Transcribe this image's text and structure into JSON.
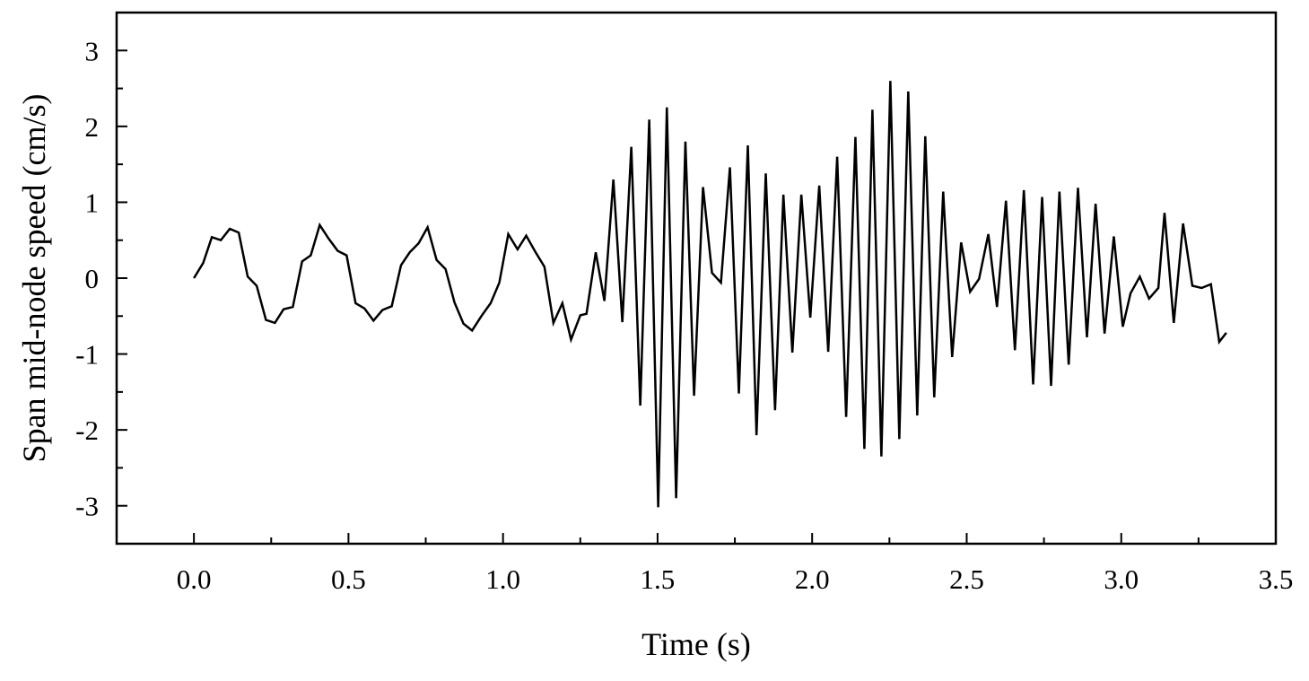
{
  "chart_data": {
    "type": "line",
    "xlabel": "Time (s)",
    "ylabel": "Span mid-node speed (cm/s)",
    "xlim": [
      -0.25,
      3.5
    ],
    "ylim": [
      -3.5,
      3.5
    ],
    "xticks": [
      {
        "value": 0,
        "label": "0.0"
      },
      0.5,
      {
        "value": 1,
        "label": "1.0"
      },
      1.5,
      {
        "value": 2,
        "label": "2.0"
      },
      2.5,
      {
        "value": 3,
        "label": "3.0"
      },
      3.5
    ],
    "yticks": [
      -3,
      -2,
      -1,
      0,
      1,
      2,
      3
    ],
    "xticks_minor": [
      -0.25,
      0.25,
      0.75,
      1.25,
      1.75,
      2.25,
      2.75,
      3.25
    ],
    "yticks_minor": [
      -3.5,
      -2.5,
      -1.5,
      -0.5,
      0.5,
      1.5,
      2.5,
      3.5
    ],
    "series": [
      {
        "color": "#000000",
        "x": [
          0,
          0.03,
          0.058,
          0.087,
          0.116,
          0.145,
          0.174,
          0.203,
          0.233,
          0.262,
          0.29,
          0.32,
          0.35,
          0.378,
          0.407,
          0.436,
          0.465,
          0.494,
          0.523,
          0.552,
          0.581,
          0.61,
          0.64,
          0.67,
          0.698,
          0.727,
          0.756,
          0.785,
          0.814,
          0.843,
          0.872,
          0.9,
          0.93,
          0.96,
          0.988,
          1.017,
          1.047,
          1.075,
          1.104,
          1.134,
          1.163,
          1.192,
          1.22,
          1.25,
          1.27,
          1.3,
          1.328,
          1.357,
          1.386,
          1.415,
          1.444,
          1.473,
          1.502,
          1.53,
          1.56,
          1.59,
          1.618,
          1.647,
          1.676,
          1.705,
          1.734,
          1.763,
          1.792,
          1.82,
          1.85,
          1.88,
          1.907,
          1.936,
          1.965,
          1.994,
          2.023,
          2.052,
          2.081,
          2.11,
          2.14,
          2.169,
          2.195,
          2.224,
          2.253,
          2.282,
          2.311,
          2.34,
          2.366,
          2.395,
          2.424,
          2.453,
          2.482,
          2.511,
          2.54,
          2.57,
          2.598,
          2.627,
          2.656,
          2.685,
          2.715,
          2.744,
          2.773,
          2.8,
          2.83,
          2.86,
          2.889,
          2.917,
          2.946,
          2.976,
          3.005,
          3.03,
          3.06,
          3.09,
          3.12,
          3.14,
          3.17,
          3.2,
          3.23,
          3.26,
          3.29,
          3.317,
          3.34
        ],
        "values": [
          0,
          0.2,
          0.54,
          0.5,
          0.65,
          0.6,
          0.02,
          -0.1,
          -0.55,
          -0.59,
          -0.41,
          -0.38,
          0.22,
          0.3,
          0.7,
          0.52,
          0.36,
          0.3,
          -0.33,
          -0.4,
          -0.56,
          -0.42,
          -0.37,
          0.17,
          0.34,
          0.46,
          0.67,
          0.24,
          0.12,
          -0.32,
          -0.6,
          -0.69,
          -0.5,
          -0.33,
          -0.06,
          0.58,
          0.38,
          0.56,
          0.35,
          0.15,
          -0.59,
          -0.33,
          -0.81,
          -0.49,
          -0.47,
          0.34,
          -0.3,
          1.3,
          -0.58,
          1.73,
          -1.68,
          2.09,
          -3.02,
          2.25,
          -2.9,
          1.8,
          -1.55,
          1.2,
          0.07,
          -0.06,
          1.46,
          -1.52,
          1.75,
          -2.07,
          1.38,
          -1.74,
          1.1,
          -0.98,
          1.1,
          -0.52,
          1.22,
          -0.97,
          1.6,
          -1.83,
          1.86,
          -2.25,
          2.22,
          -2.35,
          2.6,
          -2.12,
          2.46,
          -1.81,
          1.87,
          -1.57,
          1.14,
          -1.04,
          0.47,
          -0.18,
          -0.01,
          0.58,
          -0.38,
          1.02,
          -0.95,
          1.16,
          -1.4,
          1.07,
          -1.42,
          1.14,
          -1.14,
          1.19,
          -0.78,
          0.98,
          -0.73,
          0.55,
          -0.64,
          -0.2,
          0.02,
          -0.27,
          -0.13,
          0.86,
          -0.59,
          0.72,
          -0.1,
          -0.13,
          -0.08,
          -0.84,
          -0.72
        ]
      }
    ]
  }
}
